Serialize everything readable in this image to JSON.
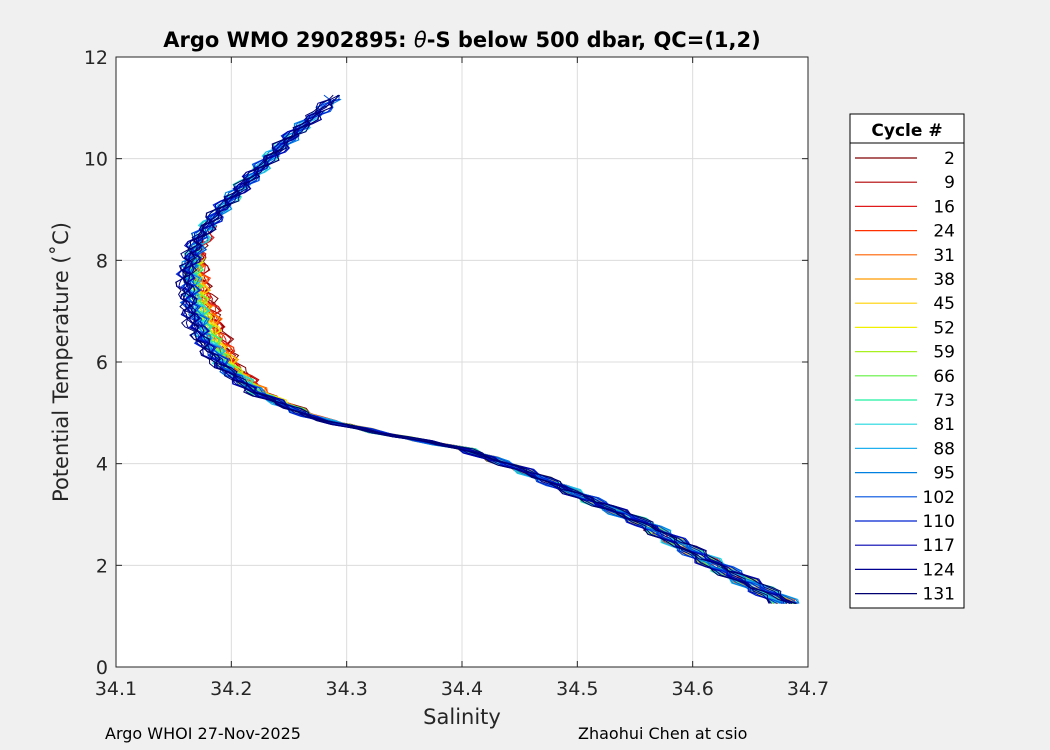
{
  "chart_data": {
    "type": "line",
    "title_prefix": "Argo WMO 2902895: ",
    "title_symbol": "θ",
    "title_suffix": "-S below 500 dbar,  QC=(1,2)",
    "xlabel": "Salinity",
    "ylabel": "Potential Temperature (˚C)",
    "xlim": [
      34.1,
      34.7
    ],
    "ylim": [
      0,
      12
    ],
    "xticks": [
      "34.1",
      "34.2",
      "34.3",
      "34.4",
      "34.5",
      "34.6",
      "34.7"
    ],
    "yticks": [
      "0",
      "2",
      "4",
      "6",
      "8",
      "10",
      "12"
    ],
    "grid": true,
    "legend_title": "Cycle #",
    "legend_position": "right",
    "series": [
      {
        "name": "2",
        "color": "#800000"
      },
      {
        "name": "9",
        "color": "#b00000"
      },
      {
        "name": "16",
        "color": "#e01a1a"
      },
      {
        "name": "24",
        "color": "#ff3000"
      },
      {
        "name": "31",
        "color": "#ff6000"
      },
      {
        "name": "38",
        "color": "#ff9a00"
      },
      {
        "name": "45",
        "color": "#ffd000"
      },
      {
        "name": "52",
        "color": "#f0f000"
      },
      {
        "name": "59",
        "color": "#a8f020"
      },
      {
        "name": "66",
        "color": "#60f040"
      },
      {
        "name": "73",
        "color": "#20f0a0"
      },
      {
        "name": "81",
        "color": "#20d8e0"
      },
      {
        "name": "88",
        "color": "#20b0f0"
      },
      {
        "name": "95",
        "color": "#0080e0"
      },
      {
        "name": "102",
        "color": "#0050e0"
      },
      {
        "name": "110",
        "color": "#0020d0"
      },
      {
        "name": "117",
        "color": "#0000b0"
      },
      {
        "name": "124",
        "color": "#000090"
      },
      {
        "name": "131",
        "color": "#000070"
      }
    ],
    "base_profile": [
      [
        34.682,
        1.25
      ],
      [
        34.62,
        2.0
      ],
      [
        34.56,
        2.8
      ],
      [
        34.5,
        3.4
      ],
      [
        34.45,
        3.9
      ],
      [
        34.4,
        4.3
      ],
      [
        34.33,
        4.6
      ],
      [
        34.27,
        4.9
      ],
      [
        34.22,
        5.4
      ],
      [
        34.19,
        5.9
      ],
      [
        34.17,
        6.5
      ],
      [
        34.16,
        7.2
      ],
      [
        34.16,
        7.8
      ],
      [
        34.17,
        8.4
      ],
      [
        34.19,
        9.0
      ],
      [
        34.22,
        9.7
      ],
      [
        34.25,
        10.4
      ],
      [
        34.29,
        11.2
      ]
    ],
    "profile_tops": [
      8.5,
      8.7,
      8.6,
      8.2,
      8.0,
      8.0,
      8.0,
      8.0,
      8.1,
      8.3,
      10.5,
      10.8,
      11.0,
      11.2,
      11.3,
      11.2,
      11.0,
      11.2,
      11.3
    ]
  },
  "footer": {
    "left": "Argo WHOI 27-Nov-2025",
    "right": "Zhaohui Chen at csio"
  }
}
